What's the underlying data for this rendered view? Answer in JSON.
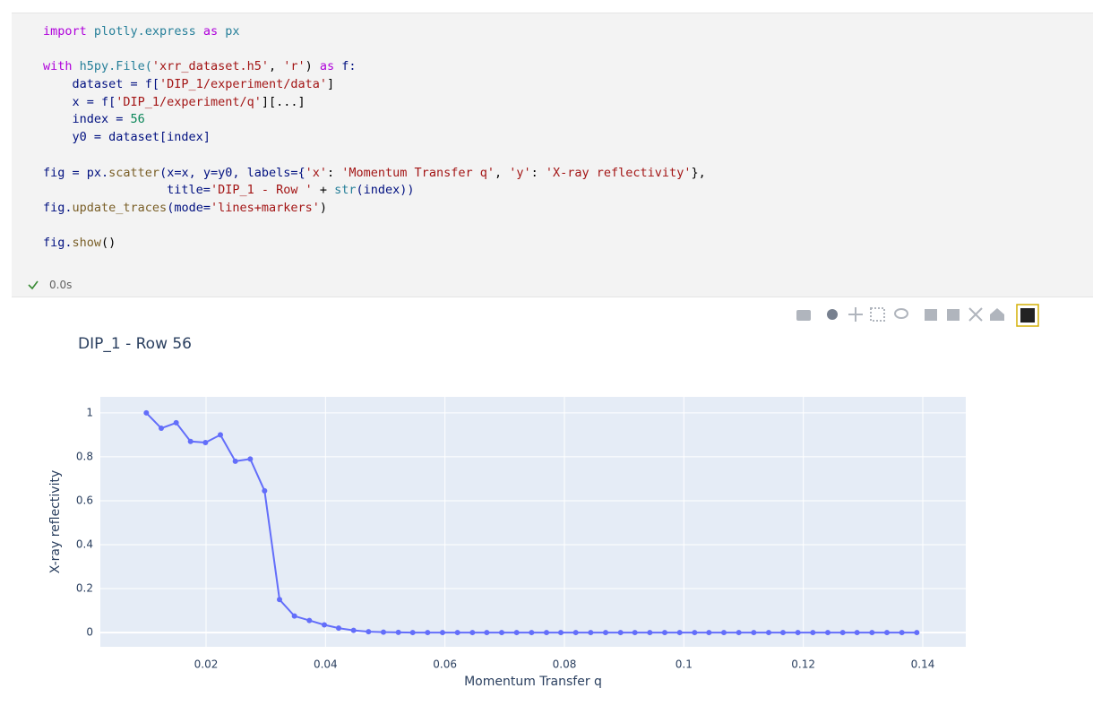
{
  "code": {
    "lines": [
      [
        {
          "text": "import",
          "color": "#af00db"
        },
        {
          "text": " plotly.express ",
          "color": "#267f99"
        },
        {
          "text": "as",
          "color": "#af00db"
        },
        {
          "text": " px",
          "color": "#267f99"
        }
      ],
      [],
      [
        {
          "text": "with",
          "color": "#af00db"
        },
        {
          "text": " h5py.File(",
          "color": "#267f99"
        },
        {
          "text": "'xrr_dataset.h5'",
          "color": "#a31515"
        },
        {
          "text": ", ",
          "color": "#000000"
        },
        {
          "text": "'r'",
          "color": "#a31515"
        },
        {
          "text": ") ",
          "color": "#000000"
        },
        {
          "text": "as",
          "color": "#af00db"
        },
        {
          "text": " f:",
          "color": "#001080"
        }
      ],
      [
        {
          "text": "    dataset = f[",
          "color": "#001080"
        },
        {
          "text": "'DIP_1/experiment/data'",
          "color": "#a31515"
        },
        {
          "text": "]",
          "color": "#000000"
        }
      ],
      [
        {
          "text": "    x = f[",
          "color": "#001080"
        },
        {
          "text": "'DIP_1/experiment/q'",
          "color": "#a31515"
        },
        {
          "text": "][...]",
          "color": "#000000"
        }
      ],
      [
        {
          "text": "    index = ",
          "color": "#001080"
        },
        {
          "text": "56",
          "color": "#098658"
        }
      ],
      [
        {
          "text": "    y0 = dataset[index]",
          "color": "#001080"
        }
      ],
      [],
      [
        {
          "text": "fig = px.",
          "color": "#001080"
        },
        {
          "text": "scatter",
          "color": "#795e26"
        },
        {
          "text": "(x=x, y=y0, labels={",
          "color": "#001080"
        },
        {
          "text": "'x'",
          "color": "#a31515"
        },
        {
          "text": ": ",
          "color": "#000000"
        },
        {
          "text": "'Momentum Transfer q'",
          "color": "#a31515"
        },
        {
          "text": ", ",
          "color": "#000000"
        },
        {
          "text": "'y'",
          "color": "#a31515"
        },
        {
          "text": ": ",
          "color": "#000000"
        },
        {
          "text": "'X-ray reflectivity'",
          "color": "#a31515"
        },
        {
          "text": "},",
          "color": "#000000"
        }
      ],
      [
        {
          "text": "                 title=",
          "color": "#001080"
        },
        {
          "text": "'DIP_1 - Row '",
          "color": "#a31515"
        },
        {
          "text": " + ",
          "color": "#000000"
        },
        {
          "text": "str",
          "color": "#267f99"
        },
        {
          "text": "(index))",
          "color": "#001080"
        }
      ],
      [
        {
          "text": "fig.",
          "color": "#001080"
        },
        {
          "text": "update_traces",
          "color": "#795e26"
        },
        {
          "text": "(mode=",
          "color": "#001080"
        },
        {
          "text": "'lines+markers'",
          "color": "#a31515"
        },
        {
          "text": ")",
          "color": "#000000"
        }
      ],
      [],
      [
        {
          "text": "fig.",
          "color": "#001080"
        },
        {
          "text": "show",
          "color": "#795e26"
        },
        {
          "text": "()",
          "color": "#000000"
        }
      ]
    ],
    "status": "0.0s"
  },
  "chart_data": {
    "type": "line",
    "mode": "lines+markers",
    "title": "DIP_1 - Row 56",
    "x_label": "Momentum Transfer q",
    "y_label": "X-ray reflectivity",
    "x": [
      0.01,
      0.0125,
      0.015,
      0.0174,
      0.0199,
      0.0224,
      0.0249,
      0.0274,
      0.0298,
      0.0323,
      0.0348,
      0.0373,
      0.0398,
      0.0422,
      0.0447,
      0.0472,
      0.0497,
      0.0522,
      0.0546,
      0.0571,
      0.0596,
      0.0621,
      0.0646,
      0.067,
      0.0695,
      0.072,
      0.0745,
      0.077,
      0.0794,
      0.0819,
      0.0844,
      0.0869,
      0.0894,
      0.0918,
      0.0943,
      0.0968,
      0.0993,
      0.1018,
      0.1042,
      0.1067,
      0.1092,
      0.1117,
      0.1142,
      0.1166,
      0.1191,
      0.1216,
      0.1241,
      0.1266,
      0.129,
      0.1315,
      0.134,
      0.1365,
      0.139
    ],
    "values": [
      1,
      0.93,
      0.955,
      0.87,
      0.865,
      0.9,
      0.78,
      0.79,
      0.645,
      0.15,
      0.075,
      0.055,
      0.035,
      0.02,
      0.01,
      0.004,
      0.002,
      0.001,
      0,
      0,
      0,
      0,
      0,
      0,
      0,
      0,
      0,
      0,
      0,
      0,
      0,
      0,
      0,
      0,
      0,
      0,
      0,
      0,
      0,
      0,
      0,
      0,
      0,
      0,
      0,
      0,
      0,
      0,
      0,
      0,
      0,
      0,
      0
    ],
    "color": "#636efa",
    "xlim": [
      0.0023,
      0.1472
    ],
    "ylim": [
      -0.065,
      1.073
    ],
    "xticks": [
      0.02,
      0.04,
      0.06,
      0.08,
      0.1,
      0.12,
      0.14
    ],
    "yticks": [
      0,
      0.2,
      0.4,
      0.6,
      0.8,
      1
    ],
    "grid": true
  }
}
